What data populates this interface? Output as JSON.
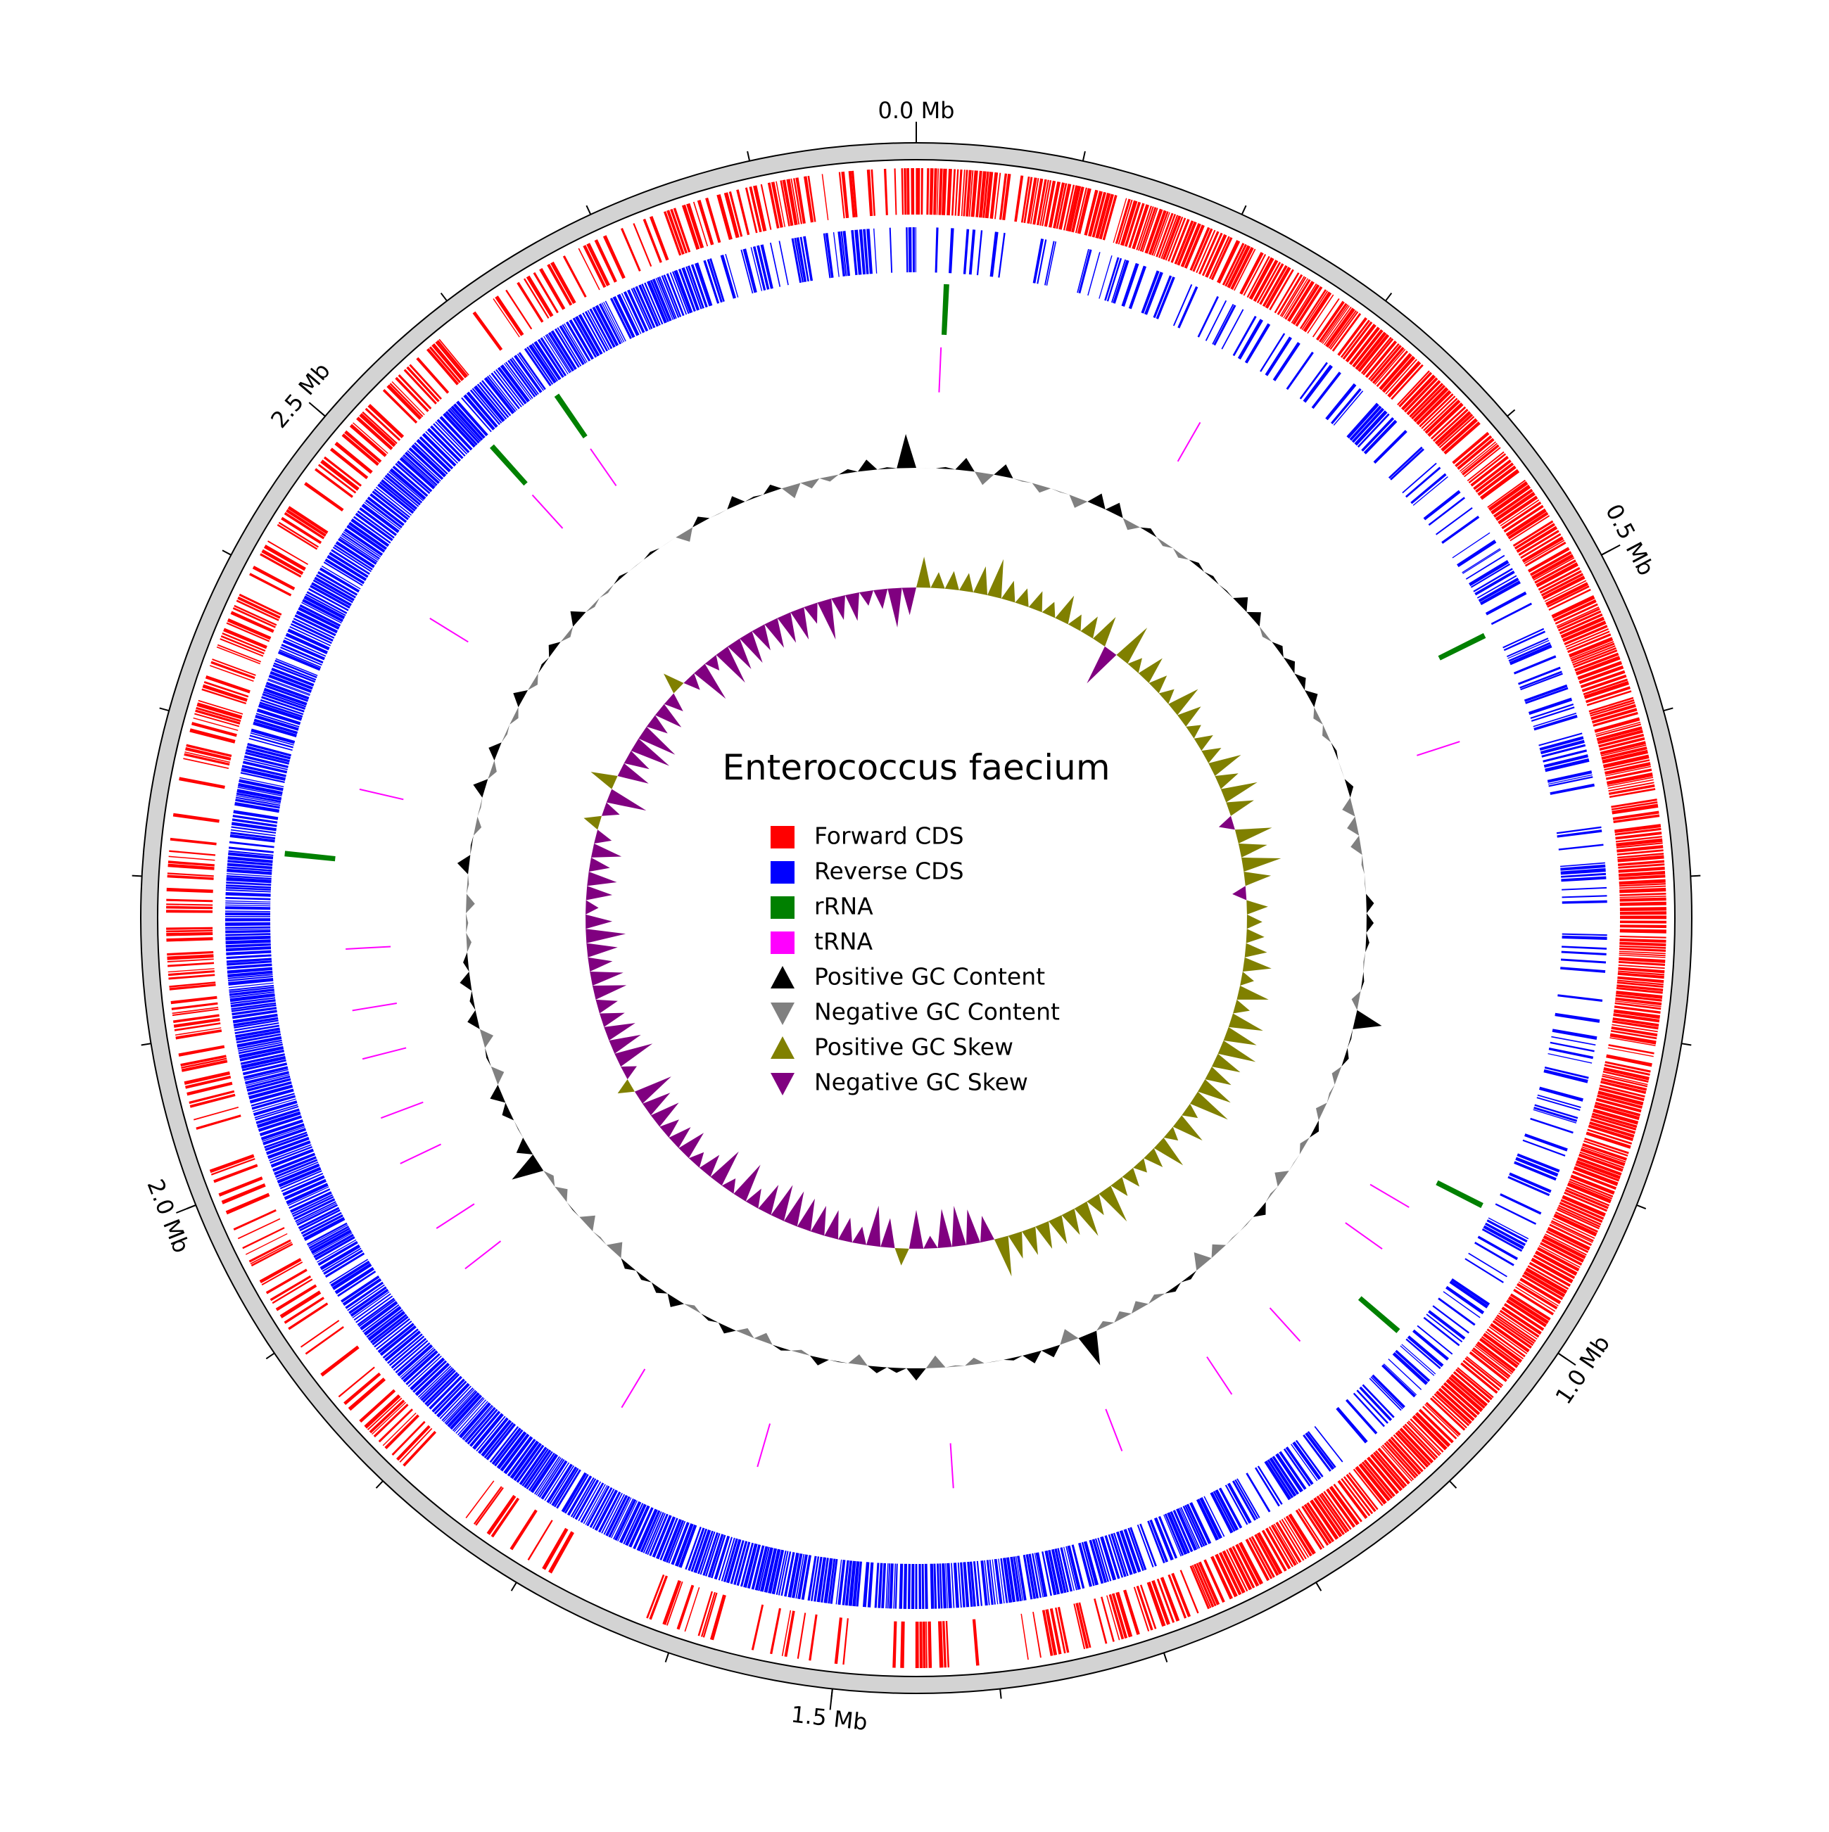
{
  "chart_data": {
    "type": "circular-genome",
    "title": "Enterococcus faecium",
    "genome_size_mb": 2.9,
    "axis": {
      "unit": "Mb",
      "major_ticks": [
        0.0,
        0.5,
        1.0,
        1.5,
        2.0,
        2.5
      ],
      "major_labels": [
        "0.0 Mb",
        "0.5 Mb",
        "1.0 Mb",
        "1.5 Mb",
        "2.0 Mb",
        "2.5 Mb"
      ],
      "minor_tick_step_mb": 0.1
    },
    "legend": [
      {
        "label": "Forward CDS",
        "color": "#ff0000",
        "marker": "square"
      },
      {
        "label": "Reverse CDS",
        "color": "#0000ff",
        "marker": "square"
      },
      {
        "label": "rRNA",
        "color": "#008000",
        "marker": "square"
      },
      {
        "label": "tRNA",
        "color": "#ff00ff",
        "marker": "square"
      },
      {
        "label": "Positive GC Content",
        "color": "#000000",
        "marker": "triangle-up"
      },
      {
        "label": "Negative GC Content",
        "color": "#808080",
        "marker": "triangle-down"
      },
      {
        "label": "Positive GC Skew",
        "color": "#808000",
        "marker": "triangle-up"
      },
      {
        "label": "Negative GC Skew",
        "color": "#800080",
        "marker": "triangle-down"
      }
    ],
    "colors": {
      "forward_cds": "#ff0000",
      "reverse_cds": "#0000ff",
      "rrna": "#008000",
      "trna": "#ff00ff",
      "gc_content_pos": "#000000",
      "gc_content_neg": "#808080",
      "gc_skew_pos": "#808000",
      "gc_skew_neg": "#800080",
      "outer_ring": "#d3d3d3"
    },
    "rrna_positions_mb": [
      0.02,
      0.51,
      0.94,
      1.05,
      2.22,
      2.56,
      2.62
    ],
    "trna_positions_mb": [
      0.02,
      0.24,
      0.58,
      0.97,
      1.01,
      1.11,
      1.18,
      1.28,
      1.42,
      1.58,
      1.7,
      1.87,
      1.91,
      1.97,
      2.01,
      2.06,
      2.1,
      2.15,
      2.28,
      2.43,
      2.56,
      2.62
    ],
    "forward_cds_regions_mb": [
      [
        0.0,
        0.1
      ],
      [
        0.1,
        0.4
      ],
      [
        0.4,
        0.9
      ],
      [
        0.9,
        1.14
      ],
      [
        1.14,
        1.26
      ],
      [
        1.26,
        1.36
      ],
      [
        1.36,
        1.52
      ],
      [
        1.52,
        1.62
      ],
      [
        1.62,
        1.8
      ],
      [
        1.8,
        1.96
      ],
      [
        1.96,
        2.1
      ],
      [
        2.1,
        2.3
      ],
      [
        2.3,
        2.58
      ],
      [
        2.58,
        2.74
      ],
      [
        2.74,
        2.86
      ],
      [
        2.86,
        2.9
      ]
    ],
    "forward_cds_density": [
      0.9,
      0.85,
      0.95,
      0.97,
      0.9,
      0.5,
      0.2,
      0.3,
      0.15,
      0.25,
      0.35,
      0.4,
      0.45,
      0.4,
      0.7,
      0.5
    ],
    "reverse_cds_regions_mb": [
      [
        0.0,
        0.2
      ],
      [
        0.2,
        0.5
      ],
      [
        0.5,
        0.8
      ],
      [
        0.8,
        1.0
      ],
      [
        1.0,
        1.15
      ],
      [
        1.15,
        1.3
      ],
      [
        1.3,
        1.6
      ],
      [
        1.6,
        1.9
      ],
      [
        1.9,
        2.2
      ],
      [
        2.2,
        2.5
      ],
      [
        2.5,
        2.75
      ],
      [
        2.75,
        2.9
      ]
    ],
    "reverse_cds_density": [
      0.3,
      0.35,
      0.3,
      0.4,
      0.45,
      0.7,
      0.9,
      0.97,
      0.97,
      0.95,
      0.9,
      0.6
    ],
    "gc_content_window_mb": 0.02,
    "gc_skew_window_mb": 0.02,
    "gc_skew_sign_regions_mb": [
      [
        0.0,
        1.33,
        "positive"
      ],
      [
        1.33,
        2.9,
        "negative"
      ]
    ]
  }
}
